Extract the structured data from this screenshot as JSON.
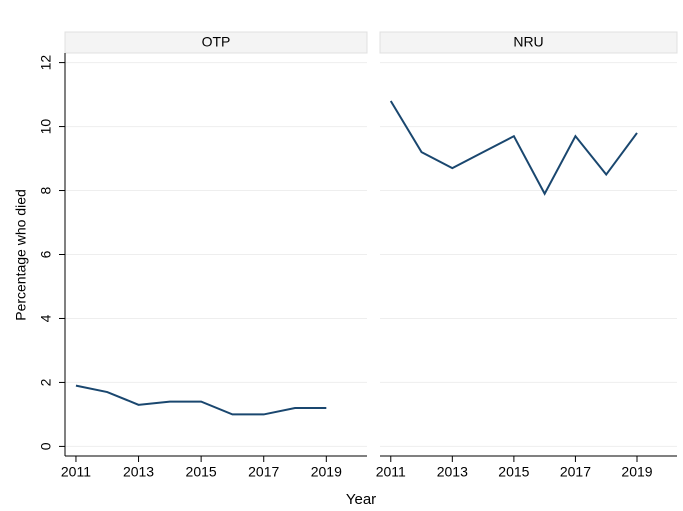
{
  "chart_data": {
    "type": "line",
    "ylabel": "Percentage who died",
    "xlabel": "Year",
    "ylim": [
      -0.3,
      12.3
    ],
    "yticks": [
      0,
      2,
      4,
      6,
      8,
      10,
      12
    ],
    "xlim": [
      2010.65,
      2020.3
    ],
    "xticks": [
      2011,
      2013,
      2015,
      2017,
      2019
    ],
    "grid": true,
    "color": "#1a476f",
    "panels": [
      {
        "title": "OTP",
        "x": [
          2011,
          2012,
          2013,
          2014,
          2015,
          2016,
          2017,
          2018,
          2019
        ],
        "values": [
          1.9,
          1.7,
          1.3,
          1.4,
          1.4,
          1.0,
          1.0,
          1.2,
          1.2
        ]
      },
      {
        "title": "NRU",
        "x": [
          2011,
          2012,
          2013,
          2014,
          2015,
          2016,
          2017,
          2018,
          2019
        ],
        "values": [
          10.8,
          9.2,
          8.7,
          9.2,
          9.7,
          7.9,
          9.7,
          8.5,
          9.8
        ]
      }
    ]
  }
}
